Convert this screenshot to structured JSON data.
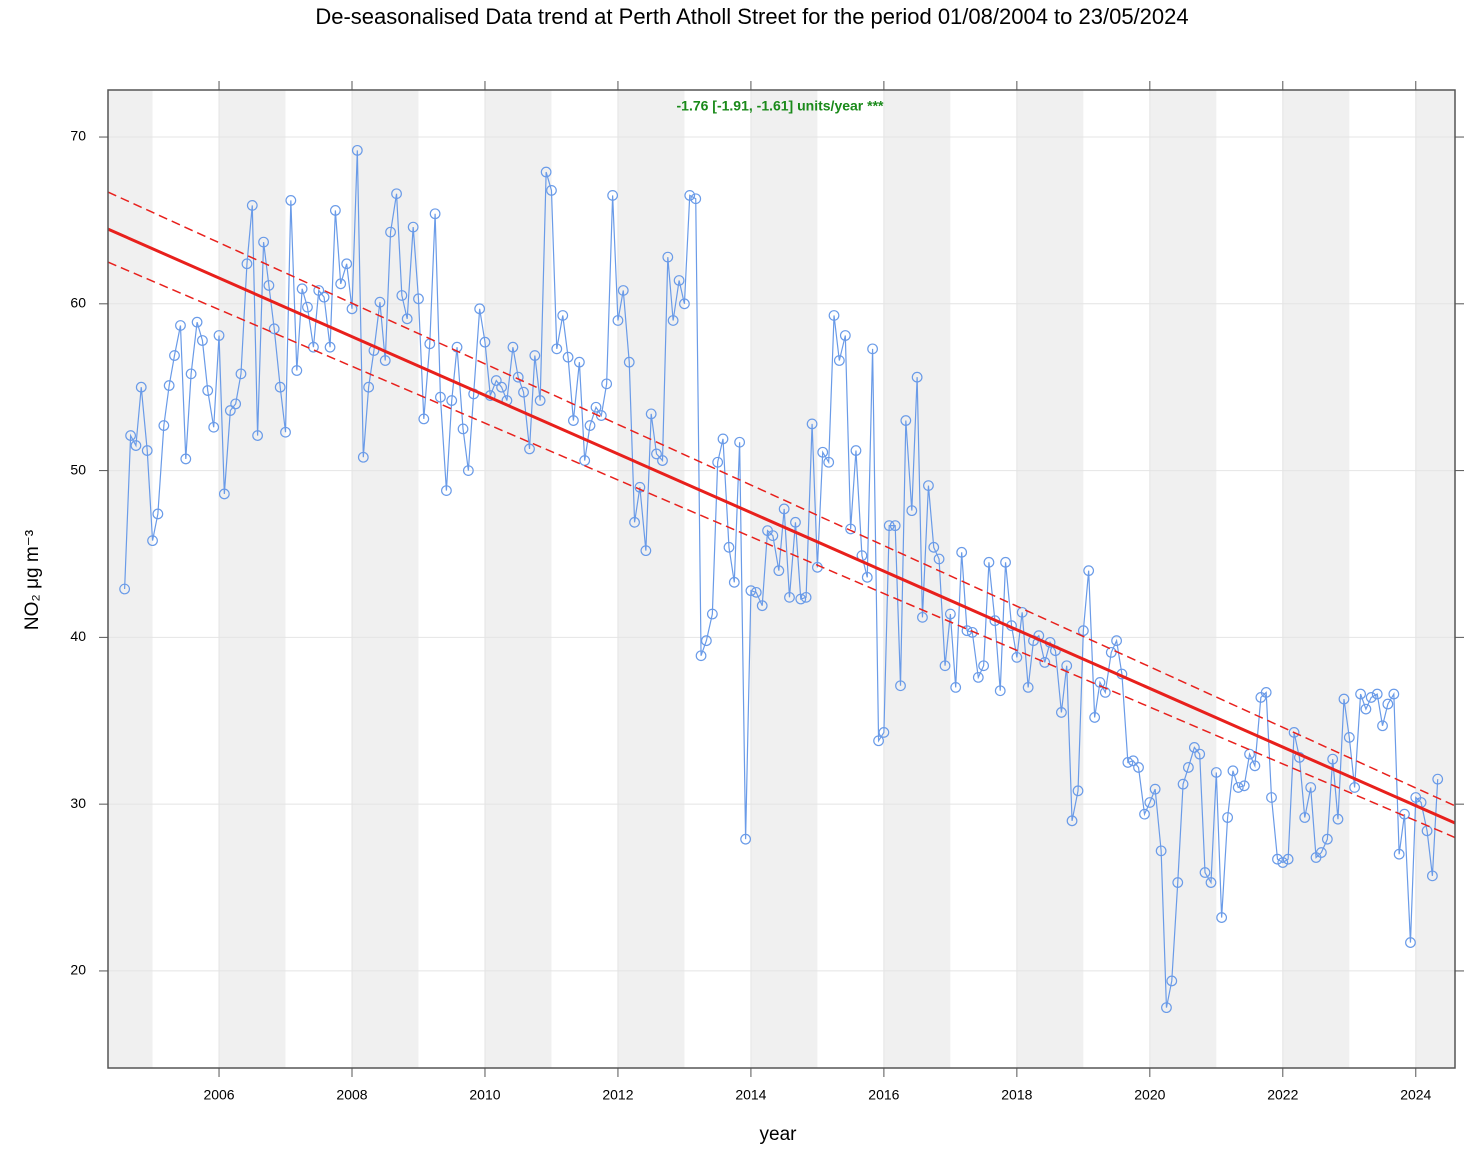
{
  "chart_data": {
    "type": "line",
    "title": "De-seasonalised Data trend at Perth Atholl Street for the period 01/08/2004 to 23/05/2024",
    "annotation": "-1.76 [-1.91, -1.61] units/year ***",
    "xlabel": "year",
    "ylabel": "NO₂ μg m⁻³",
    "xlim": [
      2004.33,
      2024.59
    ],
    "ylim": [
      14.18,
      72.82
    ],
    "xticks": [
      2006,
      2008,
      2010,
      2012,
      2014,
      2016,
      2018,
      2020,
      2022,
      2024
    ],
    "yticks": [
      20,
      30,
      40,
      50,
      60,
      70
    ],
    "grid": true,
    "series": [
      {
        "color": "#6a9be8",
        "x": [
          2004.58,
          2004.67,
          2004.75,
          2004.83,
          2004.92,
          2005,
          2005.08,
          2005.17,
          2005.25,
          2005.33,
          2005.42,
          2005.5,
          2005.58,
          2005.67,
          2005.75,
          2005.83,
          2005.92,
          2006,
          2006.08,
          2006.17,
          2006.25,
          2006.33,
          2006.42,
          2006.5,
          2006.58,
          2006.67,
          2006.75,
          2006.83,
          2006.92,
          2007,
          2007.08,
          2007.17,
          2007.25,
          2007.33,
          2007.42,
          2007.5,
          2007.58,
          2007.67,
          2007.75,
          2007.83,
          2007.92,
          2008,
          2008.08,
          2008.17,
          2008.25,
          2008.33,
          2008.42,
          2008.5,
          2008.58,
          2008.67,
          2008.75,
          2008.83,
          2008.92,
          2009,
          2009.08,
          2009.17,
          2009.25,
          2009.33,
          2009.42,
          2009.5,
          2009.58,
          2009.67,
          2009.75,
          2009.83,
          2009.92,
          2010,
          2010.08,
          2010.17,
          2010.25,
          2010.33,
          2010.42,
          2010.5,
          2010.58,
          2010.67,
          2010.75,
          2010.83,
          2010.92,
          2011,
          2011.08,
          2011.17,
          2011.25,
          2011.33,
          2011.42,
          2011.5,
          2011.58,
          2011.67,
          2011.75,
          2011.83,
          2011.92,
          2012,
          2012.08,
          2012.17,
          2012.25,
          2012.33,
          2012.42,
          2012.5,
          2012.58,
          2012.67,
          2012.75,
          2012.83,
          2012.92,
          2013,
          2013.08,
          2013.17,
          2013.25,
          2013.33,
          2013.42,
          2013.5,
          2013.58,
          2013.67,
          2013.75,
          2013.83,
          2013.92,
          2014,
          2014.08,
          2014.17,
          2014.25,
          2014.33,
          2014.42,
          2014.5,
          2014.58,
          2014.67,
          2014.75,
          2014.83,
          2014.92,
          2015,
          2015.08,
          2015.17,
          2015.25,
          2015.33,
          2015.42,
          2015.5,
          2015.58,
          2015.67,
          2015.75,
          2015.83,
          2015.92,
          2016,
          2016.08,
          2016.17,
          2016.25,
          2016.33,
          2016.42,
          2016.5,
          2016.58,
          2016.67,
          2016.75,
          2016.83,
          2016.92,
          2017,
          2017.08,
          2017.17,
          2017.25,
          2017.33,
          2017.42,
          2017.5,
          2017.58,
          2017.67,
          2017.75,
          2017.83,
          2017.92,
          2018,
          2018.08,
          2018.17,
          2018.25,
          2018.33,
          2018.42,
          2018.5,
          2018.58,
          2018.67,
          2018.75,
          2018.83,
          2018.92,
          2019,
          2019.08,
          2019.17,
          2019.25,
          2019.33,
          2019.42,
          2019.5,
          2019.58,
          2019.67,
          2019.75,
          2019.83,
          2019.92,
          2020,
          2020.08,
          2020.17,
          2020.25,
          2020.33,
          2020.42,
          2020.5,
          2020.58,
          2020.67,
          2020.75,
          2020.83,
          2020.92,
          2021,
          2021.08,
          2021.17,
          2021.25,
          2021.33,
          2021.42,
          2021.5,
          2021.58,
          2021.67,
          2021.75,
          2021.83,
          2021.92,
          2022,
          2022.08,
          2022.17,
          2022.25,
          2022.33,
          2022.42,
          2022.5,
          2022.58,
          2022.67,
          2022.75,
          2022.83,
          2022.92,
          2023,
          2023.08,
          2023.17,
          2023.25,
          2023.33,
          2023.42,
          2023.5,
          2023.58,
          2023.67,
          2023.75,
          2023.83,
          2023.92,
          2024,
          2024.08,
          2024.17,
          2024.25,
          2024.33
        ],
        "values": [
          42.9,
          52.1,
          51.5,
          55.0,
          51.2,
          45.8,
          47.4,
          52.7,
          55.1,
          56.9,
          58.7,
          50.7,
          55.8,
          58.9,
          57.8,
          54.8,
          52.6,
          58.1,
          48.6,
          53.6,
          54.0,
          55.8,
          62.4,
          65.9,
          52.1,
          63.7,
          61.1,
          58.5,
          55.0,
          52.3,
          66.2,
          56.0,
          60.9,
          59.8,
          57.4,
          60.8,
          60.4,
          57.4,
          65.6,
          61.2,
          62.4,
          59.7,
          69.2,
          50.8,
          55.0,
          57.2,
          60.1,
          56.6,
          64.3,
          66.6,
          60.5,
          59.1,
          64.6,
          60.3,
          53.1,
          57.6,
          65.4,
          54.4,
          48.8,
          54.2,
          57.4,
          52.5,
          50.0,
          54.6,
          59.7,
          57.7,
          54.5,
          55.4,
          55.0,
          54.2,
          57.4,
          55.6,
          54.7,
          51.3,
          56.9,
          54.2,
          67.9,
          66.8,
          57.3,
          59.3,
          56.8,
          53.0,
          56.5,
          50.6,
          52.7,
          53.8,
          53.3,
          55.2,
          66.5,
          59.0,
          60.8,
          56.5,
          46.9,
          49.0,
          45.2,
          53.4,
          51.0,
          50.6,
          62.8,
          59.0,
          61.4,
          60.0,
          66.5,
          66.3,
          38.9,
          39.8,
          41.4,
          50.5,
          51.9,
          45.4,
          43.3,
          51.7,
          27.9,
          42.8,
          42.7,
          41.9,
          46.4,
          46.1,
          44.0,
          47.7,
          42.4,
          46.9,
          42.3,
          42.4,
          52.8,
          44.2,
          51.1,
          50.5,
          59.3,
          56.6,
          58.1,
          46.5,
          51.2,
          44.9,
          43.6,
          57.3,
          33.8,
          34.3,
          46.7,
          46.7,
          37.1,
          53.0,
          47.6,
          55.6,
          41.2,
          49.1,
          45.4,
          44.7,
          38.3,
          41.4,
          37.0,
          45.1,
          40.4,
          40.3,
          37.6,
          38.3,
          44.5,
          41.0,
          36.8,
          44.5,
          40.7,
          38.8,
          41.5,
          37.0,
          39.8,
          40.1,
          38.5,
          39.7,
          39.2,
          35.5,
          38.3,
          29.0,
          30.8,
          40.4,
          44.0,
          35.2,
          37.3,
          36.7,
          39.1,
          39.8,
          37.8,
          32.5,
          32.6,
          32.2,
          29.4,
          30.1,
          30.9,
          27.2,
          17.8,
          19.4,
          25.3,
          31.2,
          32.2,
          33.4,
          33.0,
          25.9,
          25.3,
          31.9,
          23.2,
          29.2,
          32.0,
          31.0,
          31.1,
          33.0,
          32.3,
          36.4,
          36.7,
          30.4,
          26.7,
          26.5,
          26.7,
          34.3,
          32.8,
          29.2,
          31.0,
          26.8,
          27.1,
          27.9,
          32.7,
          29.1,
          36.3,
          34.0,
          31.0,
          36.6,
          35.7,
          36.4,
          36.6,
          34.7,
          36.0,
          36.6,
          27.0,
          29.4,
          21.7,
          30.4,
          30.1,
          28.4,
          25.7,
          31.5
        ]
      }
    ],
    "trend": {
      "color": "#e8201c",
      "x": [
        2004.33,
        2024.59
      ],
      "values": [
        64.48,
        28.87
      ]
    },
    "trend_upper": {
      "color": "#e8201c",
      "x": [
        2004.33,
        2024.59
      ],
      "values": [
        66.7,
        29.9
      ]
    },
    "trend_lower": {
      "color": "#e8201c",
      "x": [
        2004.33,
        2024.59
      ],
      "values": [
        62.5,
        28.0
      ]
    }
  }
}
